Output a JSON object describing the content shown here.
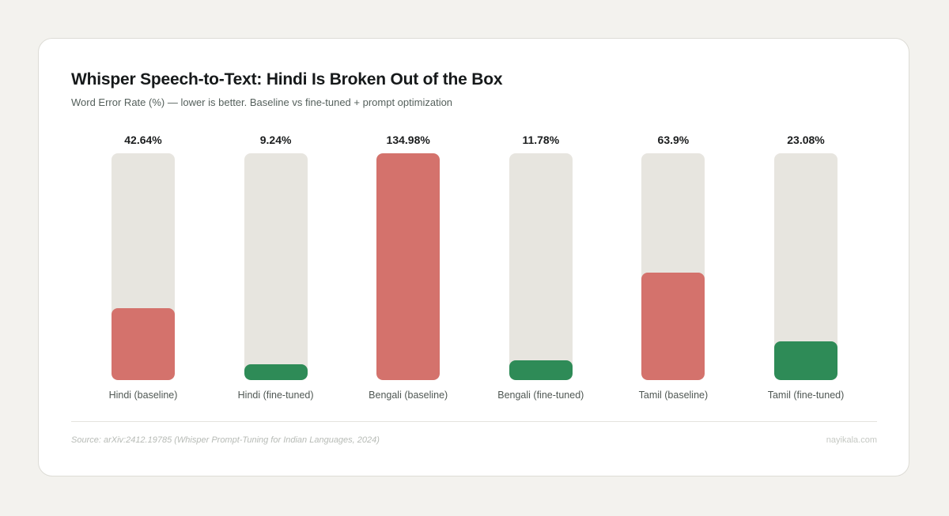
{
  "header": {
    "title": "Whisper Speech-to-Text: Hindi Is Broken Out of the Box",
    "subtitle": "Word Error Rate (%) — lower is better. Baseline vs fine-tuned + prompt optimization"
  },
  "footer": {
    "source": "Source: arXiv:2412.19785 (Whisper Prompt-Tuning for Indian Languages, 2024)",
    "brand": "nayikala.com"
  },
  "colors": {
    "baseline": "#d4726c",
    "fine_tuned": "#2e8b57",
    "track": "#e7e5df"
  },
  "bars": [
    {
      "label": "Hindi (baseline)",
      "value_label": "42.64%",
      "value": 42.64,
      "type": "baseline"
    },
    {
      "label": "Hindi (fine-tuned)",
      "value_label": "9.24%",
      "value": 9.24,
      "type": "fine_tuned"
    },
    {
      "label": "Bengali (baseline)",
      "value_label": "134.98%",
      "value": 134.98,
      "type": "baseline"
    },
    {
      "label": "Bengali (fine-tuned)",
      "value_label": "11.78%",
      "value": 11.78,
      "type": "fine_tuned"
    },
    {
      "label": "Tamil (baseline)",
      "value_label": "63.9%",
      "value": 63.9,
      "type": "baseline"
    },
    {
      "label": "Tamil (fine-tuned)",
      "value_label": "23.08%",
      "value": 23.08,
      "type": "fine_tuned"
    }
  ],
  "chart_data": {
    "type": "bar",
    "title": "Whisper Speech-to-Text: Hindi Is Broken Out of the Box",
    "subtitle": "Word Error Rate (%) — lower is better. Baseline vs fine-tuned + prompt optimization",
    "categories": [
      "Hindi (baseline)",
      "Hindi (fine-tuned)",
      "Bengali (baseline)",
      "Bengali (fine-tuned)",
      "Tamil (baseline)",
      "Tamil (fine-tuned)"
    ],
    "values": [
      42.64,
      9.24,
      134.98,
      11.78,
      63.9,
      23.08
    ],
    "xlabel": "",
    "ylabel": "Word Error Rate (%)",
    "ylim": [
      0,
      134.98
    ],
    "grid": false,
    "legend": null,
    "annotations": [
      "Source: arXiv:2412.19785 (Whisper Prompt-Tuning for Indian Languages, 2024)",
      "nayikala.com"
    ]
  }
}
